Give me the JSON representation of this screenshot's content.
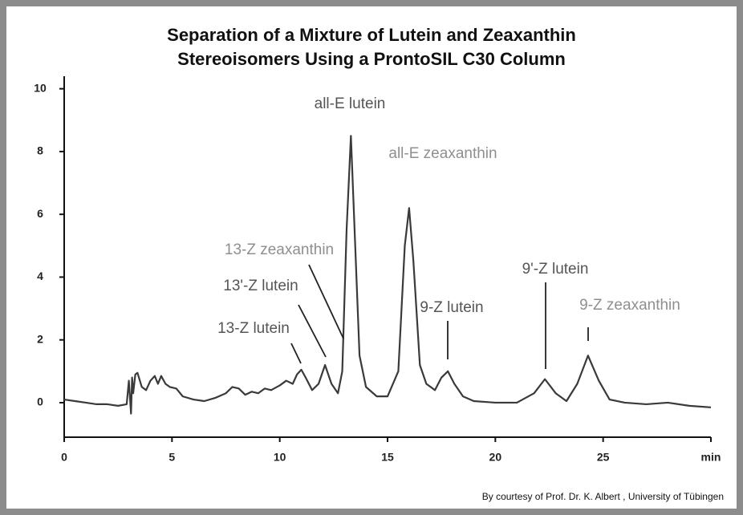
{
  "chart_data": {
    "type": "line",
    "title": "Separation of a Mixture of Lutein and Zeaxanthin",
    "subtitle": "Stereoisomers Using a ProntoSIL C30 Column",
    "source": "By courtesy of Prof. Dr. K. Albert , University of Tübingen",
    "color": "#3a3a3a",
    "x": [
      0,
      0.5,
      1,
      1.5,
      2,
      2.5,
      2.9,
      3.0,
      3.1,
      3.15,
      3.2,
      3.3,
      3.4,
      3.6,
      3.8,
      4.0,
      4.2,
      4.35,
      4.5,
      4.7,
      4.9,
      5.2,
      5.5,
      6,
      6.5,
      7,
      7.5,
      7.8,
      8.1,
      8.4,
      8.7,
      9.0,
      9.3,
      9.6,
      10,
      10.3,
      10.6,
      10.8,
      11.0,
      11.2,
      11.5,
      11.8,
      12.1,
      12.4,
      12.7,
      12.9,
      13.1,
      13.3,
      13.5,
      13.7,
      14.0,
      14.5,
      15,
      15.5,
      15.8,
      16.0,
      16.2,
      16.5,
      16.8,
      17.2,
      17.5,
      17.8,
      18.1,
      18.5,
      19,
      20,
      21,
      21.8,
      22.3,
      22.8,
      23.3,
      23.8,
      24.3,
      24.8,
      25.3,
      26,
      27,
      28,
      29,
      30
    ],
    "values": [
      0.1,
      0.05,
      0,
      -0.05,
      -0.05,
      -0.1,
      -0.05,
      0.7,
      -0.35,
      0.8,
      0.3,
      0.9,
      0.95,
      0.5,
      0.4,
      0.7,
      0.85,
      0.6,
      0.85,
      0.6,
      0.5,
      0.45,
      0.2,
      0.1,
      0.05,
      0.15,
      0.3,
      0.5,
      0.45,
      0.25,
      0.35,
      0.3,
      0.45,
      0.4,
      0.55,
      0.7,
      0.6,
      0.9,
      1.05,
      0.8,
      0.4,
      0.6,
      1.2,
      0.6,
      0.3,
      1.0,
      5.5,
      8.5,
      5.0,
      1.5,
      0.5,
      0.2,
      0.2,
      1.0,
      5.0,
      6.2,
      4.5,
      1.2,
      0.6,
      0.4,
      0.8,
      1.0,
      0.6,
      0.2,
      0.05,
      0,
      0,
      0.3,
      0.75,
      0.3,
      0.05,
      0.6,
      1.5,
      0.7,
      0.1,
      0,
      -0.05,
      0,
      -0.1,
      -0.15
    ],
    "xlim": [
      0,
      30
    ],
    "xticks": [
      0,
      5,
      10,
      15,
      20,
      25,
      {
        "value": 30,
        "label": "min"
      }
    ],
    "ylim": [
      -1.1,
      10.4
    ],
    "yticks": [
      0,
      2,
      4,
      6,
      8,
      10
    ],
    "annotations": [
      {
        "text": "all-E lutein",
        "color": "#555555"
      },
      {
        "text": "all-E zeaxanthin",
        "color": "#8f8f8f"
      },
      {
        "text": "13-Z zeaxanthin",
        "color": "#8f8f8f"
      },
      {
        "text": "13'-Z lutein",
        "color": "#555555"
      },
      {
        "text": "13-Z lutein",
        "color": "#555555"
      },
      {
        "text": "9-Z lutein",
        "color": "#555555"
      },
      {
        "text": "9'-Z lutein",
        "color": "#555555"
      },
      {
        "text": "9-Z zeaxanthin",
        "color": "#8f8f8f"
      }
    ]
  }
}
